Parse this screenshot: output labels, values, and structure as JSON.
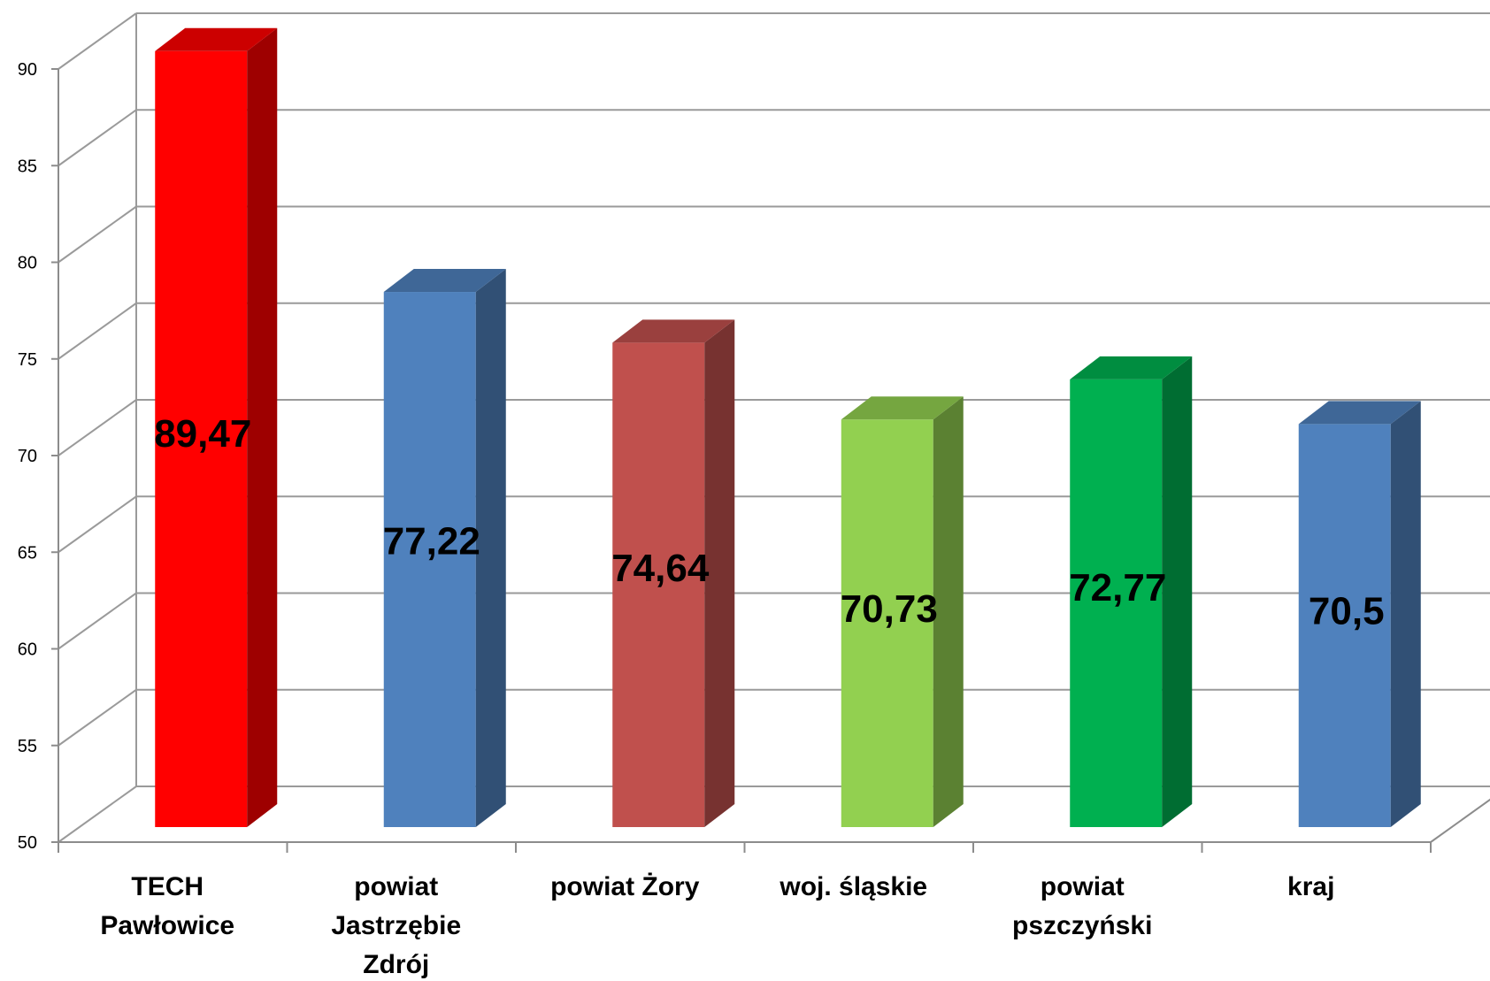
{
  "chart_data": {
    "type": "bar",
    "title": "",
    "xlabel": "",
    "ylabel": "",
    "ylim": [
      50,
      90
    ],
    "ytick_step": 5,
    "grid": true,
    "style": "3d-column",
    "categories": [
      [
        "TECH",
        "Pawłowice"
      ],
      [
        "powiat",
        "Jastrzębie",
        "Zdrój"
      ],
      [
        "powiat Żory"
      ],
      [
        "woj. śląskie"
      ],
      [
        "powiat",
        "pszczyński"
      ],
      [
        "kraj"
      ]
    ],
    "values": [
      89.47,
      77.22,
      74.64,
      70.73,
      72.77,
      70.5
    ],
    "data_labels": [
      "89,47",
      "77,22",
      "74,64",
      "70,73",
      "72,77",
      "70,5"
    ],
    "colors": [
      "#ff0000",
      "#4f81bd",
      "#c0504d",
      "#92d050",
      "#00b050",
      "#4f81bd"
    ]
  }
}
